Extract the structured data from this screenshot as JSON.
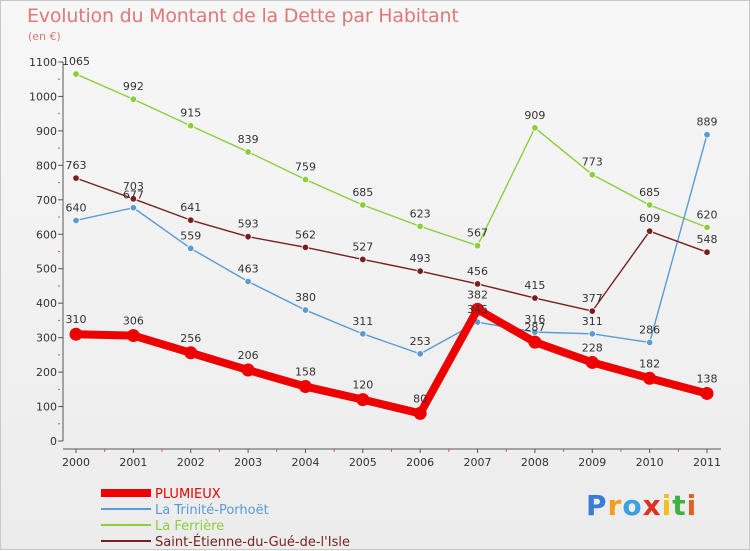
{
  "chart_data": {
    "type": "line",
    "title": "Evolution du Montant de la Dette par Habitant",
    "subtitle": "(en €)",
    "x": [
      "2000",
      "2001",
      "2002",
      "2003",
      "2004",
      "2005",
      "2006",
      "2007",
      "2008",
      "2009",
      "2010",
      "2011"
    ],
    "ylim": [
      0,
      1100
    ],
    "yticks": [
      0,
      100,
      200,
      300,
      400,
      500,
      600,
      700,
      800,
      900,
      1000,
      1100
    ],
    "grid": false,
    "legend_position": "bottom-left",
    "series": [
      {
        "name": "PLUMIEUX",
        "color": "#ee0000",
        "values": [
          310,
          306,
          256,
          206,
          158,
          120,
          80,
          382,
          287,
          228,
          182,
          138
        ]
      },
      {
        "name": "La Trinité-Porhoët",
        "color": "#5b9bd5",
        "values": [
          640,
          677,
          559,
          463,
          380,
          311,
          253,
          345,
          316,
          311,
          286,
          889
        ]
      },
      {
        "name": "La Ferrière",
        "color": "#8dce3c",
        "values": [
          1065,
          992,
          915,
          839,
          759,
          685,
          623,
          567,
          909,
          773,
          685,
          620
        ]
      },
      {
        "name": "Saint-Étienne-du-Gué-de-l'Isle",
        "color": "#7a1f1f",
        "values": [
          763,
          703,
          641,
          593,
          562,
          527,
          493,
          456,
          415,
          377,
          609,
          548
        ]
      }
    ]
  },
  "logo": {
    "letters": [
      "P",
      "r",
      "o",
      "x",
      "i",
      "t",
      "i"
    ],
    "colors": [
      "#3a7dd8",
      "#f0a020",
      "#3aa0e0",
      "#e03020",
      "#f0c020",
      "#40b040",
      "#e06020"
    ]
  }
}
